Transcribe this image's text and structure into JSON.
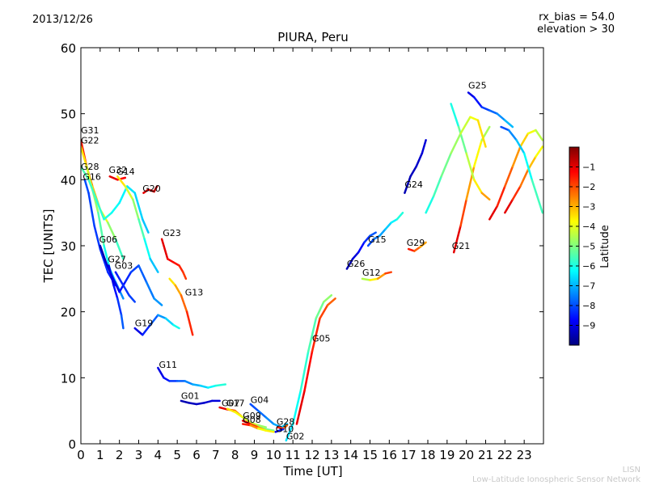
{
  "header": {
    "date": "2013/12/26",
    "bias": "rx_bias = 54.0",
    "elevation": "elevation > 30"
  },
  "footer": {
    "credit_short": "LISN",
    "credit_long": "Low-Latitude Ionospheric Sensor Network"
  },
  "colors": {
    "scale": [
      "#00007f",
      "#0000ff",
      "#007fff",
      "#00ffff",
      "#7fff7f",
      "#ffff00",
      "#ff7f00",
      "#ff0000",
      "#7f0000"
    ],
    "note": "jet colormap, blue = -10, red = 0"
  },
  "chart_data": {
    "type": "line",
    "title": "PIURA, Peru",
    "xlabel": "Time [UT]",
    "ylabel": "TEC [UNITS]",
    "xlim": [
      0,
      24
    ],
    "ylim": [
      0,
      60
    ],
    "xticks": [
      0,
      1,
      2,
      3,
      4,
      5,
      6,
      7,
      8,
      9,
      10,
      11,
      12,
      13,
      14,
      15,
      16,
      17,
      18,
      19,
      20,
      21,
      22,
      23
    ],
    "yticks": [
      0,
      10,
      20,
      30,
      40,
      50,
      60
    ],
    "grid": false,
    "colorbar": {
      "label": "Latitude",
      "range": [
        -10,
        0
      ],
      "ticks": [
        -9,
        -8,
        -7,
        -6,
        -5,
        -4,
        -3,
        -2,
        -1
      ],
      "colormap": "jet"
    },
    "series": [
      {
        "name": "G31",
        "label_x": 0.0,
        "label_y": 47.0,
        "lat_start": -1.5,
        "lat_end": -6.5,
        "x": [
          0.0,
          0.3,
          0.6,
          1.0,
          1.4,
          1.8,
          2.2
        ],
        "y": [
          46.0,
          42.0,
          39.0,
          35.5,
          33.5,
          31.0,
          28.0
        ]
      },
      {
        "name": "G22",
        "label_x": 0.0,
        "label_y": 45.5,
        "lat_start": -3.5,
        "lat_end": -8.0,
        "x": [
          0.0,
          0.3,
          0.6,
          0.9,
          1.2,
          1.5,
          1.8,
          2.2
        ],
        "y": [
          45.0,
          42.0,
          38.5,
          35.0,
          30.0,
          26.5,
          24.5,
          22.0
        ]
      },
      {
        "name": "G28",
        "label_x": 0.0,
        "label_y": 41.5,
        "lat_start": -5.5,
        "lat_end": -7.0,
        "x": [
          0.0,
          0.4,
          0.8,
          1.2,
          1.6,
          2.0,
          2.4,
          2.8,
          3.2,
          3.5
        ],
        "y": [
          42.0,
          40.0,
          37.0,
          34.0,
          35.0,
          36.5,
          39.0,
          38.0,
          34.0,
          32.0
        ]
      },
      {
        "name": "G16",
        "label_x": 0.1,
        "label_y": 40.0,
        "lat_start": -8.0,
        "lat_end": -8.5,
        "x": [
          0.2,
          0.4,
          0.7,
          1.0,
          1.4,
          1.8
        ],
        "y": [
          40.0,
          38.0,
          33.0,
          29.5,
          26.0,
          24.0
        ]
      },
      {
        "name": "G32",
        "label_x": 1.45,
        "label_y": 41.0,
        "lat_start": -1.0,
        "lat_end": -1.5,
        "x": [
          1.5,
          1.9,
          2.3
        ],
        "y": [
          40.5,
          40.0,
          40.3
        ]
      },
      {
        "name": "G14",
        "label_x": 1.85,
        "label_y": 40.8,
        "lat_start": -3.5,
        "lat_end": -7.5,
        "x": [
          1.9,
          2.3,
          2.7,
          3.0,
          3.3,
          3.6,
          4.0
        ],
        "y": [
          40.5,
          39.0,
          37.0,
          34.0,
          31.0,
          28.0,
          26.0
        ]
      },
      {
        "name": "G20",
        "label_x": 3.2,
        "label_y": 38.2,
        "lat_start": -1.0,
        "lat_end": -0.5,
        "x": [
          3.25,
          3.5,
          3.8,
          3.95
        ],
        "y": [
          38.0,
          38.5,
          38.2,
          39.0
        ]
      },
      {
        "name": "G06",
        "label_x": 0.95,
        "label_y": 30.5,
        "lat_start": -9.5,
        "lat_end": -7.0,
        "x": [
          1.0,
          1.3,
          1.6,
          2.0,
          2.3,
          2.6,
          3.0,
          3.4,
          3.8,
          4.2
        ],
        "y": [
          30.0,
          27.5,
          25.5,
          23.0,
          24.5,
          26.0,
          27.0,
          24.5,
          22.0,
          21.0
        ]
      },
      {
        "name": "G27",
        "label_x": 1.4,
        "label_y": 27.5,
        "lat_start": -9.0,
        "lat_end": -7.5,
        "x": [
          1.45,
          1.7,
          1.9,
          2.1,
          2.2
        ],
        "y": [
          27.0,
          24.0,
          22.0,
          19.5,
          17.5
        ]
      },
      {
        "name": "G03",
        "label_x": 1.75,
        "label_y": 26.5,
        "lat_start": -8.5,
        "lat_end": -8.0,
        "x": [
          1.8,
          2.0,
          2.2,
          2.5,
          2.8
        ],
        "y": [
          26.0,
          25.0,
          24.0,
          22.5,
          21.5
        ]
      },
      {
        "name": "G23",
        "label_x": 4.25,
        "label_y": 31.5,
        "lat_start": -1.0,
        "lat_end": -2.0,
        "x": [
          4.2,
          4.5,
          4.8,
          5.1,
          5.3,
          5.45
        ],
        "y": [
          31.0,
          28.0,
          27.5,
          27.0,
          26.0,
          25.0
        ]
      },
      {
        "name": "G13",
        "label_x": 5.4,
        "label_y": 22.5,
        "lat_start": -3.5,
        "lat_end": -1.0,
        "x": [
          4.6,
          4.9,
          5.2,
          5.5,
          5.8
        ],
        "y": [
          25.0,
          24.0,
          22.5,
          20.0,
          16.5
        ]
      },
      {
        "name": "G19",
        "label_x": 2.8,
        "label_y": 17.8,
        "lat_start": -9.0,
        "lat_end": -5.5,
        "x": [
          2.8,
          3.2,
          3.6,
          4.0,
          4.4,
          4.8,
          5.1
        ],
        "y": [
          17.5,
          16.5,
          18.0,
          19.5,
          19.0,
          18.0,
          17.5
        ]
      },
      {
        "name": "G11",
        "label_x": 4.05,
        "label_y": 11.5,
        "lat_start": -9.0,
        "lat_end": -5.5,
        "x": [
          4.0,
          4.3,
          4.6,
          5.0,
          5.4,
          5.8,
          6.2,
          6.6,
          7.0,
          7.5
        ],
        "y": [
          11.5,
          10.0,
          9.5,
          9.5,
          9.5,
          9.0,
          8.8,
          8.5,
          8.8,
          9.0
        ]
      },
      {
        "name": "G01",
        "label_x": 5.2,
        "label_y": 6.8,
        "lat_start": -9.5,
        "lat_end": -9.0,
        "x": [
          5.2,
          5.6,
          6.0,
          6.4,
          6.8,
          7.2
        ],
        "y": [
          6.5,
          6.2,
          6.0,
          6.2,
          6.5,
          6.5
        ]
      },
      {
        "name": "G07",
        "label_x": 7.3,
        "label_y": 5.7,
        "lat_start": -1.0,
        "lat_end": -5.5,
        "x": [
          7.2,
          7.6,
          8.0,
          8.4,
          8.8,
          9.2,
          9.6
        ],
        "y": [
          5.5,
          5.2,
          5.0,
          4.0,
          3.2,
          2.8,
          2.5
        ]
      },
      {
        "name": "G17",
        "label_x": 7.55,
        "label_y": 5.7,
        "lat_start": -3.5,
        "lat_end": -5.5,
        "x": [
          7.6,
          8.0,
          8.4,
          8.8,
          9.2,
          9.6,
          10.0
        ],
        "y": [
          5.3,
          4.8,
          4.0,
          3.2,
          2.6,
          2.2,
          2.0
        ]
      },
      {
        "name": "G04",
        "label_x": 8.8,
        "label_y": 6.2,
        "lat_start": -8.0,
        "lat_end": -6.5,
        "x": [
          8.8,
          9.2,
          9.6,
          10.0,
          10.4,
          10.7
        ],
        "y": [
          6.0,
          5.0,
          4.0,
          3.0,
          2.5,
          3.0
        ]
      },
      {
        "name": "G09",
        "label_x": 8.4,
        "label_y": 3.8,
        "lat_start": -1.0,
        "lat_end": -4.5,
        "x": [
          8.4,
          8.8,
          9.2,
          9.6,
          10.0
        ],
        "y": [
          3.5,
          3.0,
          2.5,
          2.0,
          1.8
        ]
      },
      {
        "name": "G08",
        "label_x": 8.4,
        "label_y": 3.2,
        "lat_start": -1.5,
        "lat_end": -5.0,
        "x": [
          8.4,
          8.8,
          9.2,
          9.6
        ],
        "y": [
          3.0,
          2.8,
          2.3,
          2.0
        ]
      },
      {
        "name": "G28",
        "label_x": 10.15,
        "label_y": 2.9,
        "lat_start": -1.5,
        "lat_end": -3.0,
        "x": [
          10.2,
          10.5,
          10.7
        ],
        "y": [
          2.5,
          2.3,
          2.8
        ]
      },
      {
        "name": "G10",
        "label_x": 10.1,
        "label_y": 1.8,
        "lat_start": -9.0,
        "lat_end": -8.0,
        "x": [
          10.1,
          10.3,
          10.5
        ],
        "y": [
          1.8,
          2.0,
          2.2
        ]
      },
      {
        "name": "G02",
        "label_x": 10.65,
        "label_y": 0.7,
        "lat_start": -6.5,
        "lat_end": -4.5,
        "x": [
          10.65,
          11.0,
          11.4,
          11.8,
          12.2,
          12.6,
          13.0
        ],
        "y": [
          0.5,
          3.0,
          8.0,
          14.0,
          19.0,
          21.5,
          22.5
        ]
      },
      {
        "name": "G05",
        "label_x": 12.0,
        "label_y": 15.5,
        "lat_start": -1.0,
        "lat_end": -2.5,
        "x": [
          11.2,
          11.6,
          12.0,
          12.4,
          12.8,
          13.2
        ],
        "y": [
          3.0,
          8.0,
          14.0,
          19.0,
          21.0,
          22.0
        ]
      },
      {
        "name": "G26",
        "label_x": 13.8,
        "label_y": 26.8,
        "lat_start": -9.5,
        "lat_end": -7.5,
        "x": [
          13.8,
          14.1,
          14.4,
          14.7,
          15.0,
          15.3
        ],
        "y": [
          26.5,
          28.0,
          29.0,
          30.5,
          31.5,
          32.0
        ]
      },
      {
        "name": "G12",
        "label_x": 14.6,
        "label_y": 25.5,
        "lat_start": -4.5,
        "lat_end": -1.0,
        "x": [
          14.6,
          15.0,
          15.4,
          15.8,
          16.1
        ],
        "y": [
          25.0,
          24.8,
          25.0,
          25.8,
          26.0
        ]
      },
      {
        "name": "G15",
        "label_x": 14.9,
        "label_y": 30.5,
        "lat_start": -8.0,
        "lat_end": -5.5,
        "x": [
          14.9,
          15.2,
          15.5,
          15.8,
          16.1,
          16.4,
          16.7
        ],
        "y": [
          30.0,
          31.0,
          31.5,
          32.5,
          33.5,
          34.0,
          35.0
        ]
      },
      {
        "name": "G24",
        "label_x": 16.8,
        "label_y": 38.8,
        "lat_start": -9.5,
        "lat_end": -9.0,
        "x": [
          16.8,
          17.1,
          17.4,
          17.7,
          17.9
        ],
        "y": [
          38.0,
          40.5,
          42.0,
          44.0,
          46.0
        ]
      },
      {
        "name": "G29",
        "label_x": 16.9,
        "label_y": 30.0,
        "lat_start": -1.5,
        "lat_end": -3.5,
        "x": [
          17.0,
          17.3,
          17.6,
          17.9
        ],
        "y": [
          29.5,
          29.2,
          29.8,
          30.5
        ]
      },
      {
        "name": "G21",
        "label_x": 19.25,
        "label_y": 29.5,
        "lat_start": -1.0,
        "lat_end": -5.5,
        "x": [
          19.35,
          19.7,
          20.0,
          20.4,
          20.8,
          21.2
        ],
        "y": [
          29.0,
          33.0,
          37.0,
          42.0,
          46.0,
          48.0
        ]
      },
      {
        "name": "G25",
        "label_x": 20.1,
        "label_y": 53.8,
        "lat_start": -9.0,
        "lat_end": -6.5,
        "x": [
          20.1,
          20.4,
          20.8,
          21.2,
          21.6,
          22.0,
          22.4
        ],
        "y": [
          53.2,
          52.5,
          51.0,
          50.5,
          50.0,
          49.0,
          48.0
        ]
      },
      {
        "name": "",
        "label_x": null,
        "label_y": null,
        "lat_start": -6.0,
        "lat_end": -2.0,
        "x": [
          19.2,
          19.6,
          20.0,
          20.4,
          20.8,
          21.2
        ],
        "y": [
          51.5,
          48.0,
          44.0,
          40.0,
          38.0,
          37.0
        ]
      },
      {
        "name": "",
        "label_x": null,
        "label_y": null,
        "lat_start": -1.0,
        "lat_end": -5.0,
        "x": [
          21.2,
          21.6,
          22.0,
          22.4,
          22.8,
          23.2,
          23.6,
          23.95
        ],
        "y": [
          34.0,
          36.0,
          39.0,
          42.0,
          45.0,
          47.0,
          47.5,
          46.0
        ]
      },
      {
        "name": "",
        "label_x": null,
        "label_y": null,
        "lat_start": -1.0,
        "lat_end": -4.5,
        "x": [
          22.0,
          22.4,
          22.8,
          23.2,
          23.6,
          23.95
        ],
        "y": [
          35.0,
          37.0,
          39.0,
          41.5,
          43.5,
          45.0
        ]
      },
      {
        "name": "",
        "label_x": null,
        "label_y": null,
        "lat_start": -6.0,
        "lat_end": -3.0,
        "x": [
          17.9,
          18.3,
          18.7,
          19.2,
          19.7,
          20.2,
          20.6,
          21.0
        ],
        "y": [
          35.0,
          37.5,
          40.5,
          44.0,
          47.0,
          49.5,
          49.0,
          45.0
        ]
      },
      {
        "name": "",
        "label_x": null,
        "label_y": null,
        "lat_start": -8.0,
        "lat_end": -5.0,
        "x": [
          21.8,
          22.2,
          22.6,
          23.0,
          23.4,
          23.95
        ],
        "y": [
          48.0,
          47.5,
          46.0,
          44.0,
          40.0,
          35.0
        ]
      }
    ]
  }
}
